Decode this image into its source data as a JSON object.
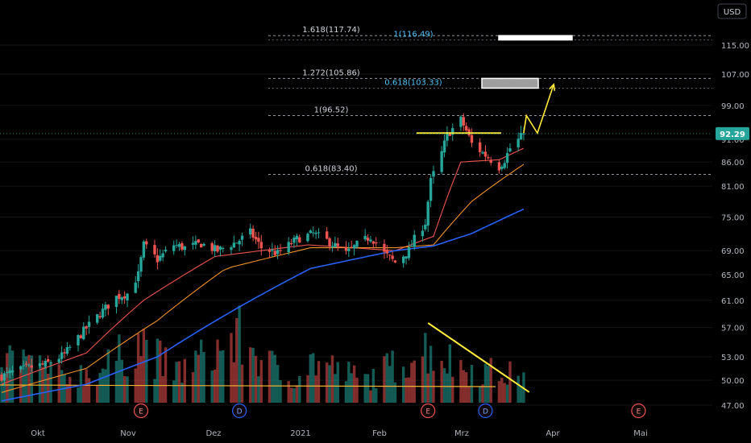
{
  "currency_button": {
    "label": "USD"
  },
  "price_badge": {
    "value": "92.29",
    "color": "#26a69a"
  },
  "colors": {
    "up": "#26a69a",
    "down": "#ef5350",
    "ma_fast": "#ef5350",
    "ma_mid": "#f0922b",
    "ma_slow": "#2962ff",
    "volume_ma": "#f2b233",
    "annotation": "#ffeb3b",
    "fib_text": "#d1d4dc",
    "fib_alt_text": "#4fc3f7",
    "event_earnings": "#ef5350",
    "event_dividend": "#2962ff"
  },
  "chart_data": {
    "type": "candlestick",
    "title": "",
    "x_ticks": [
      "Okt",
      "Nov",
      "Dez",
      "2021",
      "Feb",
      "Mrz",
      "Apr",
      "Mai"
    ],
    "y_ticks": [
      "47.00",
      "50.00",
      "53.00",
      "57.00",
      "61.00",
      "65.00",
      "69.00",
      "75.00",
      "81.00",
      "86.00",
      "91.00",
      "99.00",
      "107.00",
      "115.00"
    ],
    "y_tick_values": [
      47,
      50,
      53,
      57,
      61,
      65,
      69,
      75,
      81,
      86,
      91,
      99,
      107,
      115
    ],
    "y_scale": "log",
    "ylim": [
      45.5,
      128
    ],
    "last_price": 92.29,
    "fib_levels": [
      {
        "label": "1.618(117.74)",
        "value": 117.74
      },
      {
        "label": "1.272(105.86)",
        "value": 105.86
      },
      {
        "label": "1(96.52)",
        "value": 96.52
      },
      {
        "label": "0.618(83.40)",
        "value": 83.4
      }
    ],
    "fib_levels_alt": [
      {
        "label": "1(116.49)",
        "value": 116.49
      },
      {
        "label": "0.618(103.33)",
        "value": 103.33
      }
    ],
    "target_zones": [
      {
        "low": 116.49,
        "high": 117.74
      },
      {
        "low": 103.33,
        "high": 105.86
      }
    ],
    "resistance_line": 92.4,
    "event_markers": [
      {
        "label": "E",
        "kind": "earnings",
        "date": "2020-11-04"
      },
      {
        "label": "D",
        "kind": "dividend",
        "date": "2020-12-10"
      },
      {
        "label": "E",
        "kind": "earnings",
        "date": "2021-02-17"
      },
      {
        "label": "D",
        "kind": "dividend",
        "date": "2021-03-10"
      },
      {
        "label": "E",
        "kind": "earnings",
        "date": "2021-05-05"
      }
    ],
    "price_path": [
      [
        "2020-09-14",
        50.5
      ],
      [
        "2020-09-18",
        51.0
      ],
      [
        "2020-09-24",
        51.6
      ],
      [
        "2020-09-30",
        52.0
      ],
      [
        "2020-10-07",
        53.3
      ],
      [
        "2020-10-14",
        56.5
      ],
      [
        "2020-10-20",
        59.0
      ],
      [
        "2020-10-26",
        61.5
      ],
      [
        "2020-10-30",
        62.0
      ],
      [
        "2020-11-03",
        65.0
      ],
      [
        "2020-11-05",
        70.0
      ],
      [
        "2020-11-10",
        67.5
      ],
      [
        "2020-11-16",
        70.0
      ],
      [
        "2020-11-20",
        69.5
      ],
      [
        "2020-11-26",
        70.2
      ],
      [
        "2020-12-02",
        69.0
      ],
      [
        "2020-12-09",
        70.5
      ],
      [
        "2020-12-14",
        72.2
      ],
      [
        "2020-12-18",
        69.5
      ],
      [
        "2020-12-24",
        68.5
      ],
      [
        "2020-12-31",
        71.0
      ],
      [
        "2021-01-06",
        72.0
      ],
      [
        "2021-01-12",
        70.5
      ],
      [
        "2021-01-18",
        68.5
      ],
      [
        "2021-01-22",
        70.0
      ],
      [
        "2021-01-27",
        71.5
      ],
      [
        "2021-02-01",
        68.5
      ],
      [
        "2021-02-05",
        67.0
      ],
      [
        "2021-02-10",
        69.0
      ],
      [
        "2021-02-12",
        71.0
      ],
      [
        "2021-02-16",
        74.0
      ],
      [
        "2021-02-18",
        82.0
      ],
      [
        "2021-02-22",
        88.0
      ],
      [
        "2021-02-24",
        92.0
      ],
      [
        "2021-03-01",
        95.5
      ],
      [
        "2021-03-03",
        93.0
      ],
      [
        "2021-03-05",
        90.0
      ],
      [
        "2021-03-09",
        88.0
      ],
      [
        "2021-03-11",
        87.0
      ],
      [
        "2021-03-15",
        85.0
      ],
      [
        "2021-03-17",
        86.5
      ],
      [
        "2021-03-19",
        89.0
      ],
      [
        "2021-03-23",
        91.5
      ],
      [
        "2021-03-24",
        92.29
      ]
    ],
    "moving_averages": [
      {
        "name": "fast",
        "points": [
          [
            "2020-09-14",
            49.5
          ],
          [
            "2020-10-15",
            53.5
          ],
          [
            "2020-11-05",
            61.0
          ],
          [
            "2020-12-01",
            68.0
          ],
          [
            "2021-01-04",
            70.0
          ],
          [
            "2021-02-05",
            69.0
          ],
          [
            "2021-02-19",
            71.5
          ],
          [
            "2021-03-01",
            86.0
          ],
          [
            "2021-03-15",
            86.5
          ],
          [
            "2021-03-24",
            89.0
          ]
        ]
      },
      {
        "name": "mid",
        "points": [
          [
            "2020-09-14",
            48.5
          ],
          [
            "2020-10-15",
            51.5
          ],
          [
            "2020-11-10",
            58.0
          ],
          [
            "2020-12-05",
            66.0
          ],
          [
            "2021-01-05",
            69.5
          ],
          [
            "2021-02-05",
            69.5
          ],
          [
            "2021-02-19",
            70.0
          ],
          [
            "2021-03-05",
            78.0
          ],
          [
            "2021-03-15",
            82.0
          ],
          [
            "2021-03-24",
            85.5
          ]
        ]
      },
      {
        "name": "slow",
        "points": [
          [
            "2020-09-14",
            47.5
          ],
          [
            "2020-10-15",
            49.5
          ],
          [
            "2020-11-10",
            53.0
          ],
          [
            "2020-12-10",
            60.0
          ],
          [
            "2021-01-05",
            66.0
          ],
          [
            "2021-02-05",
            69.0
          ],
          [
            "2021-02-19",
            69.8
          ],
          [
            "2021-03-05",
            72.0
          ],
          [
            "2021-03-24",
            76.5
          ]
        ]
      }
    ],
    "volume_shape": [
      [
        "2020-09-14",
        0.45
      ],
      [
        "2020-09-18",
        0.75
      ],
      [
        "2020-10-05",
        0.4
      ],
      [
        "2020-10-20",
        0.5
      ],
      [
        "2020-11-04",
        0.95
      ],
      [
        "2020-11-16",
        0.45
      ],
      [
        "2020-12-10",
        1.0
      ],
      [
        "2020-12-28",
        0.35
      ],
      [
        "2021-01-06",
        0.65
      ],
      [
        "2021-01-25",
        0.35
      ],
      [
        "2021-02-17",
        0.85
      ],
      [
        "2021-03-01",
        0.55
      ],
      [
        "2021-03-24",
        0.4
      ]
    ],
    "volume_ma_level": 0.2,
    "annotations": {
      "projection_path": [
        [
          "2021-03-24",
          92.4
        ],
        [
          "2021-03-25",
          96.52
        ],
        [
          "2021-03-29",
          92.4
        ],
        [
          "2021-04-04",
          104.3
        ]
      ],
      "volume_trendline": [
        [
          "2021-02-17",
          0.9
        ],
        [
          "2021-03-26",
          0.12
        ]
      ]
    }
  }
}
